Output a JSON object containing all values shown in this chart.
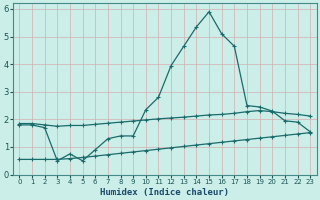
{
  "title": "",
  "xlabel": "Humidex (Indice chaleur)",
  "ylabel": "",
  "bg_color": "#cceee8",
  "line_color": "#1a6b6b",
  "grid_color_major": "#d4b0b0",
  "grid_color_minor": "#d4b0b0",
  "xlim": [
    -0.5,
    23.5
  ],
  "ylim": [
    0,
    6.2
  ],
  "xticks": [
    0,
    1,
    2,
    3,
    4,
    5,
    6,
    7,
    8,
    9,
    10,
    11,
    12,
    13,
    14,
    15,
    16,
    17,
    18,
    19,
    20,
    21,
    22,
    23
  ],
  "yticks": [
    0,
    1,
    2,
    3,
    4,
    5,
    6
  ],
  "series1_x": [
    0,
    1,
    2,
    3,
    4,
    5,
    6,
    7,
    8,
    9,
    10,
    11,
    12,
    13,
    14,
    15,
    16,
    17,
    18,
    19,
    20,
    21,
    22,
    23
  ],
  "series1_y": [
    1.8,
    1.8,
    1.7,
    0.5,
    0.75,
    0.5,
    0.9,
    1.3,
    1.4,
    1.4,
    2.35,
    2.8,
    3.95,
    4.65,
    5.35,
    5.9,
    5.1,
    4.65,
    2.5,
    2.45,
    2.3,
    1.95,
    1.9,
    1.55
  ],
  "series2_x": [
    0,
    1,
    2,
    3,
    4,
    5,
    6,
    7,
    8,
    9,
    10,
    11,
    12,
    13,
    14,
    15,
    16,
    17,
    18,
    19,
    20,
    21,
    22,
    23
  ],
  "series2_y": [
    1.85,
    1.85,
    1.8,
    1.75,
    1.78,
    1.78,
    1.82,
    1.86,
    1.9,
    1.94,
    1.98,
    2.02,
    2.05,
    2.08,
    2.12,
    2.16,
    2.18,
    2.22,
    2.28,
    2.32,
    2.28,
    2.22,
    2.18,
    2.12
  ],
  "series3_x": [
    0,
    1,
    2,
    3,
    4,
    5,
    6,
    7,
    8,
    9,
    10,
    11,
    12,
    13,
    14,
    15,
    16,
    17,
    18,
    19,
    20,
    21,
    22,
    23
  ],
  "series3_y": [
    0.55,
    0.55,
    0.55,
    0.55,
    0.58,
    0.62,
    0.67,
    0.72,
    0.77,
    0.82,
    0.87,
    0.92,
    0.97,
    1.02,
    1.07,
    1.12,
    1.17,
    1.22,
    1.27,
    1.32,
    1.37,
    1.42,
    1.47,
    1.52
  ]
}
